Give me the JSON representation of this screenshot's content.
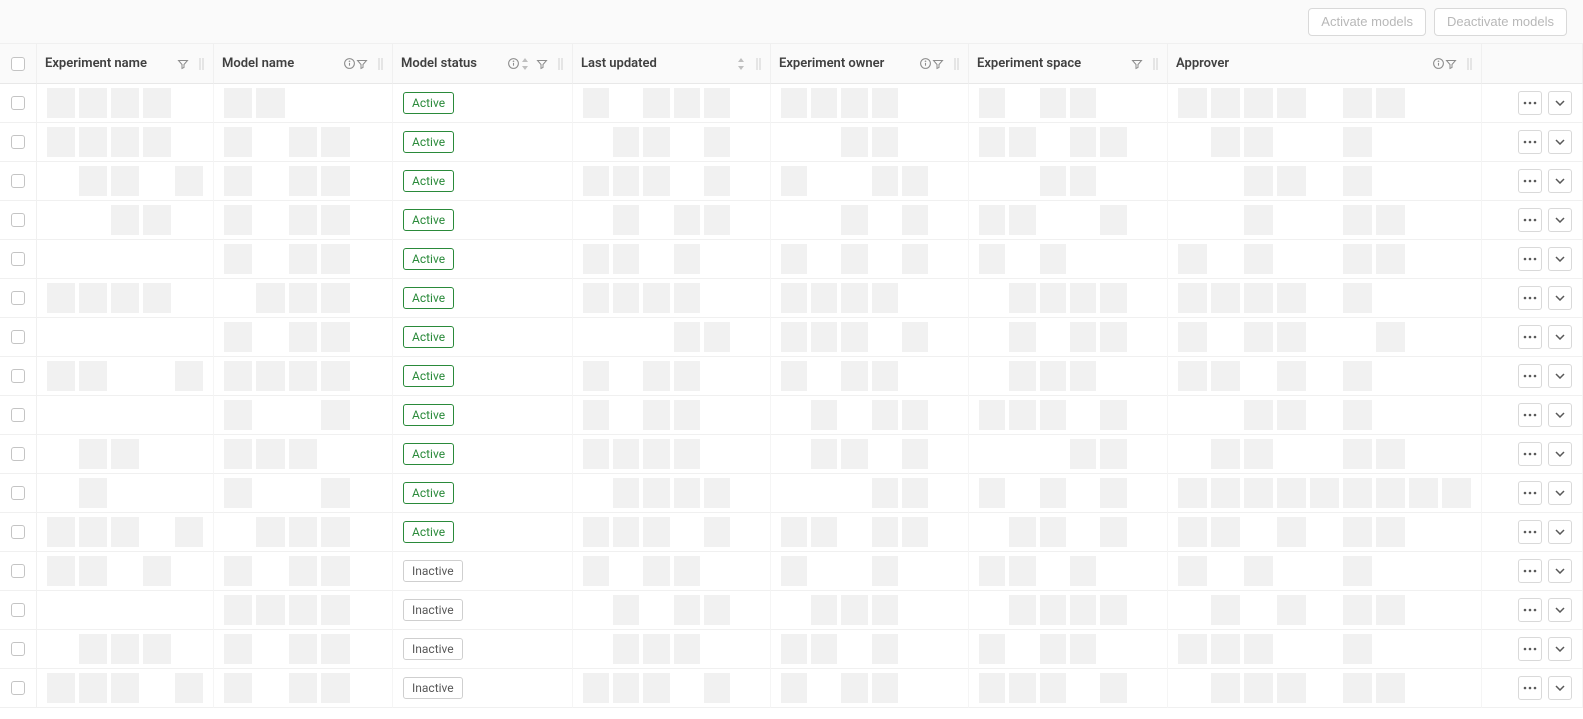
{
  "colors": {
    "toolbar_bg": "#fafafa",
    "border": "#e8e8e8",
    "row_border": "#f0f0f0",
    "text": "#595959",
    "header_text": "#404040",
    "btn_disabled_text": "#b8b8b8",
    "btn_border": "#d9d9d9",
    "active_green": "#2a8a3a",
    "inactive_border": "#cfcfcf",
    "redact_bg": "#f1f1f1"
  },
  "toolbar": {
    "activate_label": "Activate models",
    "deactivate_label": "Deactivate models"
  },
  "columns": [
    {
      "key": "checkbox",
      "label": "",
      "has_filter": false,
      "has_info": false,
      "has_sort": false,
      "has_resize": false
    },
    {
      "key": "experiment_name",
      "label": "Experiment name",
      "has_filter": true,
      "has_info": false,
      "has_sort": false,
      "has_resize": true
    },
    {
      "key": "model_name",
      "label": "Model name",
      "has_filter": true,
      "has_info": true,
      "has_sort": false,
      "has_resize": true
    },
    {
      "key": "model_status",
      "label": "Model status",
      "has_filter": true,
      "has_info": true,
      "has_sort": true,
      "has_resize": true
    },
    {
      "key": "last_updated",
      "label": "Last updated",
      "has_filter": false,
      "has_info": false,
      "has_sort": true,
      "has_resize": true
    },
    {
      "key": "experiment_owner",
      "label": "Experiment owner",
      "has_filter": true,
      "has_info": true,
      "has_sort": false,
      "has_resize": true
    },
    {
      "key": "experiment_space",
      "label": "Experiment space",
      "has_filter": true,
      "has_info": false,
      "has_sort": false,
      "has_resize": true
    },
    {
      "key": "approver",
      "label": "Approver",
      "has_filter": true,
      "has_info": true,
      "has_sort": false,
      "has_resize": true
    },
    {
      "key": "actions",
      "label": "",
      "has_filter": false,
      "has_info": false,
      "has_sort": false,
      "has_resize": false
    }
  ],
  "status_labels": {
    "active": "Active",
    "inactive": "Inactive"
  },
  "rows": [
    {
      "status": "active"
    },
    {
      "status": "active"
    },
    {
      "status": "active"
    },
    {
      "status": "active"
    },
    {
      "status": "active"
    },
    {
      "status": "active"
    },
    {
      "status": "active"
    },
    {
      "status": "active"
    },
    {
      "status": "active"
    },
    {
      "status": "active"
    },
    {
      "status": "active"
    },
    {
      "status": "active"
    },
    {
      "status": "inactive"
    },
    {
      "status": "inactive"
    },
    {
      "status": "inactive"
    },
    {
      "status": "inactive"
    }
  ],
  "redaction_patterns": {
    "experiment_name": [
      [
        1,
        1,
        1,
        1,
        0
      ],
      [
        1,
        1,
        1,
        1,
        0
      ],
      [
        0,
        1,
        1,
        0,
        1
      ],
      [
        0,
        0,
        1,
        1,
        0
      ],
      [
        0,
        0,
        0,
        0,
        0
      ],
      [
        1,
        1,
        1,
        1,
        0
      ],
      [
        0,
        0,
        0,
        0,
        0
      ],
      [
        1,
        1,
        0,
        0,
        1
      ],
      [
        0,
        0,
        0,
        0,
        0
      ],
      [
        0,
        1,
        1,
        0,
        0
      ],
      [
        0,
        1,
        0,
        0,
        0
      ],
      [
        1,
        1,
        1,
        0,
        1
      ],
      [
        1,
        1,
        0,
        1,
        0
      ],
      [
        0,
        0,
        0,
        0,
        0
      ],
      [
        0,
        1,
        1,
        1,
        0
      ],
      [
        1,
        1,
        1,
        0,
        1
      ]
    ],
    "model_name": [
      [
        1,
        1,
        0,
        0,
        0
      ],
      [
        1,
        0,
        1,
        1,
        0
      ],
      [
        1,
        0,
        1,
        1,
        0
      ],
      [
        1,
        0,
        1,
        1,
        0
      ],
      [
        1,
        0,
        1,
        1,
        0
      ],
      [
        0,
        1,
        1,
        1,
        0
      ],
      [
        1,
        0,
        1,
        1,
        0
      ],
      [
        1,
        1,
        1,
        1,
        0
      ],
      [
        1,
        0,
        0,
        1,
        0
      ],
      [
        1,
        1,
        1,
        0,
        0
      ],
      [
        1,
        0,
        0,
        1,
        0
      ],
      [
        0,
        1,
        1,
        1,
        0
      ],
      [
        1,
        0,
        1,
        1,
        0
      ],
      [
        1,
        1,
        1,
        1,
        0
      ],
      [
        1,
        0,
        1,
        1,
        0
      ],
      [
        1,
        0,
        1,
        1,
        0
      ]
    ],
    "last_updated": [
      [
        1,
        0,
        1,
        1,
        1,
        0
      ],
      [
        0,
        1,
        1,
        0,
        1,
        0
      ],
      [
        1,
        1,
        1,
        0,
        1,
        0
      ],
      [
        0,
        1,
        0,
        1,
        1,
        0
      ],
      [
        1,
        1,
        0,
        1,
        0,
        0
      ],
      [
        1,
        1,
        1,
        1,
        0,
        0
      ],
      [
        0,
        0,
        0,
        1,
        1,
        0
      ],
      [
        1,
        0,
        1,
        1,
        0,
        0
      ],
      [
        1,
        0,
        1,
        1,
        0,
        0
      ],
      [
        1,
        1,
        1,
        1,
        0,
        0
      ],
      [
        0,
        1,
        1,
        1,
        1,
        0
      ],
      [
        1,
        1,
        1,
        0,
        1,
        0
      ],
      [
        1,
        0,
        1,
        1,
        0,
        0
      ],
      [
        0,
        1,
        0,
        1,
        1,
        0
      ],
      [
        0,
        1,
        1,
        1,
        0,
        0
      ],
      [
        1,
        1,
        1,
        0,
        1,
        0
      ]
    ],
    "experiment_owner": [
      [
        1,
        1,
        1,
        1,
        0,
        0
      ],
      [
        0,
        0,
        1,
        1,
        0,
        0
      ],
      [
        1,
        0,
        0,
        1,
        1,
        0
      ],
      [
        0,
        0,
        1,
        0,
        1,
        0
      ],
      [
        1,
        0,
        1,
        0,
        1,
        0
      ],
      [
        1,
        1,
        1,
        1,
        0,
        0
      ],
      [
        1,
        1,
        1,
        0,
        1,
        0
      ],
      [
        1,
        0,
        1,
        1,
        0,
        0
      ],
      [
        0,
        1,
        0,
        1,
        1,
        0
      ],
      [
        0,
        1,
        1,
        0,
        1,
        0
      ],
      [
        0,
        0,
        0,
        1,
        1,
        0
      ],
      [
        1,
        1,
        0,
        1,
        1,
        0
      ],
      [
        1,
        0,
        0,
        1,
        0,
        0
      ],
      [
        0,
        1,
        1,
        1,
        0,
        0
      ],
      [
        1,
        1,
        0,
        1,
        0,
        0
      ],
      [
        1,
        0,
        1,
        1,
        0,
        0
      ]
    ],
    "experiment_space": [
      [
        1,
        0,
        1,
        1,
        0,
        0
      ],
      [
        1,
        1,
        0,
        1,
        1,
        0
      ],
      [
        0,
        0,
        1,
        1,
        0,
        0
      ],
      [
        1,
        1,
        0,
        0,
        1,
        0
      ],
      [
        1,
        0,
        1,
        0,
        0,
        0
      ],
      [
        0,
        1,
        1,
        1,
        1,
        0
      ],
      [
        0,
        1,
        0,
        1,
        1,
        0
      ],
      [
        0,
        1,
        1,
        1,
        0,
        0
      ],
      [
        1,
        1,
        1,
        0,
        1,
        0
      ],
      [
        0,
        0,
        0,
        1,
        1,
        0
      ],
      [
        1,
        0,
        1,
        0,
        1,
        0
      ],
      [
        0,
        1,
        1,
        0,
        1,
        0
      ],
      [
        1,
        1,
        0,
        1,
        0,
        0
      ],
      [
        0,
        1,
        1,
        1,
        1,
        0
      ],
      [
        1,
        0,
        1,
        1,
        0,
        0
      ],
      [
        1,
        1,
        1,
        0,
        1,
        0
      ]
    ],
    "approver": [
      [
        1,
        1,
        1,
        1,
        0,
        1,
        1,
        0,
        0
      ],
      [
        0,
        1,
        1,
        0,
        0,
        1,
        0,
        0,
        0
      ],
      [
        0,
        0,
        1,
        1,
        0,
        1,
        0,
        0,
        0
      ],
      [
        0,
        0,
        1,
        0,
        0,
        1,
        1,
        0,
        0
      ],
      [
        1,
        0,
        1,
        0,
        0,
        1,
        1,
        0,
        0
      ],
      [
        1,
        1,
        1,
        1,
        0,
        1,
        0,
        0,
        0
      ],
      [
        1,
        0,
        1,
        1,
        0,
        0,
        1,
        0,
        0
      ],
      [
        1,
        1,
        0,
        1,
        0,
        1,
        0,
        0,
        0
      ],
      [
        0,
        0,
        1,
        1,
        0,
        1,
        0,
        0,
        0
      ],
      [
        0,
        1,
        1,
        0,
        0,
        1,
        1,
        0,
        0
      ],
      [
        1,
        1,
        1,
        1,
        1,
        1,
        1,
        1,
        1
      ],
      [
        1,
        1,
        0,
        1,
        0,
        1,
        1,
        0,
        0
      ],
      [
        1,
        0,
        1,
        0,
        0,
        1,
        0,
        0,
        0
      ],
      [
        0,
        1,
        0,
        1,
        0,
        1,
        1,
        0,
        0
      ],
      [
        1,
        1,
        1,
        0,
        0,
        1,
        0,
        0,
        0
      ],
      [
        0,
        1,
        1,
        1,
        0,
        1,
        1,
        0,
        0
      ]
    ]
  }
}
